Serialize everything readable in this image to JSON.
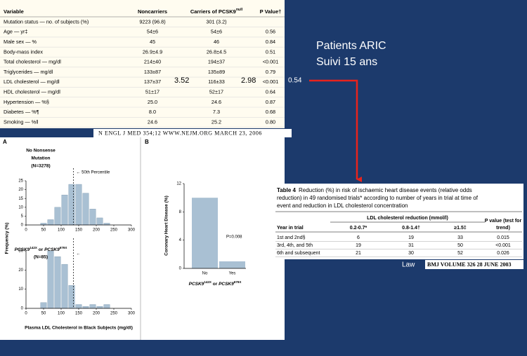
{
  "slide": {
    "heading_lines": [
      "Patients ARIC",
      "Suivi 15 ans"
    ],
    "annotations": [
      "3.52",
      "2.98",
      "0.54"
    ],
    "source_label": "Law"
  },
  "table1": {
    "columns": [
      "Variable",
      "Noncarriers",
      "Carriers of PCSK9",
      "P Value†"
    ],
    "carriers_superscript": "null",
    "rows": [
      [
        "Mutation status — no. of subjects (%)",
        "9223 (96.8)",
        "301 (3.2)"
      ],
      [
        "Age — yr‡",
        "54±6",
        "54±6",
        "0.56"
      ],
      [
        "Male sex — %",
        "45",
        "46",
        "0.84"
      ],
      [
        "Body-mass index",
        "26.9±4.9",
        "26.8±4.5",
        "0.51"
      ],
      [
        "Total cholesterol — mg/dl",
        "214±40",
        "194±37",
        "<0.001"
      ],
      [
        "Triglycerides — mg/dl",
        "133±87",
        "135±89",
        "0.79"
      ],
      [
        "LDL cholesterol — mg/dl",
        "137±37",
        "116±33",
        "<0.001"
      ],
      [
        "HDL cholesterol — mg/dl",
        "51±17",
        "52±17",
        "0.64"
      ],
      [
        "Hypertension — %§",
        "25.0",
        "24.6",
        "0.87"
      ],
      [
        "Diabetes — %¶",
        "8.0",
        "7.3",
        "0.68"
      ],
      [
        "Smoking — %‖",
        "24.6",
        "25.2",
        "0.80"
      ]
    ]
  },
  "citation1": "N ENGL J MED 354;12    WWW.NEJM.ORG    MARCH 23, 2006",
  "panel_a": {
    "label": "A",
    "ylabel": "Frequency (%)",
    "xlabel": "Plasma LDL Cholesterol in Black Subjects (mg/dl)"
  },
  "panel_b": {
    "label": "B"
  },
  "chart_data": [
    {
      "type": "histogram",
      "title_lines": [
        "No Nonsense",
        "Mutation",
        "(N=3278)"
      ],
      "annotation": "← 50th Percentile",
      "percentile_x": 135,
      "bins": [
        40,
        60,
        80,
        100,
        120,
        140,
        160,
        180,
        200,
        220,
        240
      ],
      "counts": [
        1,
        3,
        10,
        17,
        23,
        23,
        18,
        9,
        4,
        1
      ],
      "color": "#a9c0d3",
      "xlim": [
        0,
        300
      ],
      "xticks": [
        0,
        50,
        100,
        150,
        200,
        250,
        300
      ],
      "ylim": [
        0,
        25
      ],
      "yticks": [
        0,
        5,
        10,
        15,
        20,
        25
      ]
    },
    {
      "type": "histogram",
      "title_parts": [
        "PCSK9",
        "142X",
        " or ",
        "PCSK9",
        "679X"
      ],
      "title_n": "(N=85)",
      "annotation": "←",
      "percentile_x": 135,
      "bins": [
        40,
        60,
        80,
        100,
        120,
        140,
        160,
        180,
        200,
        220,
        240
      ],
      "counts": [
        3,
        30,
        27,
        23,
        12,
        2,
        1,
        2,
        1,
        2
      ],
      "color": "#a9c0d3",
      "xlim": [
        0,
        300
      ],
      "xticks": [
        0,
        50,
        100,
        150,
        200,
        250,
        300
      ],
      "ylim": [
        0,
        30
      ],
      "yticks": [
        0,
        10,
        20,
        30
      ]
    },
    {
      "type": "bar",
      "categories": [
        "No",
        "Yes"
      ],
      "values": [
        10,
        1
      ],
      "color": "#a9c0d3",
      "ylabel": "Coronary Heart Disease (%)",
      "annotation": "P=0.008",
      "xlabel_parts": [
        "PCSK9",
        "142X",
        " or ",
        "PCSK9",
        "679X"
      ],
      "ylim": [
        0,
        12
      ],
      "yticks": [
        0,
        4,
        8,
        12
      ]
    }
  ],
  "table4": {
    "title": "Table 4",
    "caption_lines": [
      "Reduction (%) in risk of ischaemic heart disease events (relative odds",
      "reduction) in 49 randomised trials* according to number of years in trial at time of",
      "event and reduction in LDL cholesterol concentration"
    ],
    "group_header": "LDL cholesterol reduction (mmol/l)",
    "p_header_lines": [
      "P value (test for",
      "trend)"
    ],
    "columns": [
      "Year in trial",
      "0.2-0.7*",
      "0.8-1.4†",
      "≥1.5‡"
    ],
    "rows": [
      [
        "1st and 2nd§",
        "6",
        "19",
        "33",
        "0.015"
      ],
      [
        "3rd, 4th, and 5th",
        "19",
        "31",
        "50",
        "<0.001"
      ],
      [
        "6th and subsequent",
        "21",
        "30",
        "52",
        "0.026"
      ]
    ]
  },
  "citation2": "BMJ  VOLUME 326   28 JUNE 2003"
}
